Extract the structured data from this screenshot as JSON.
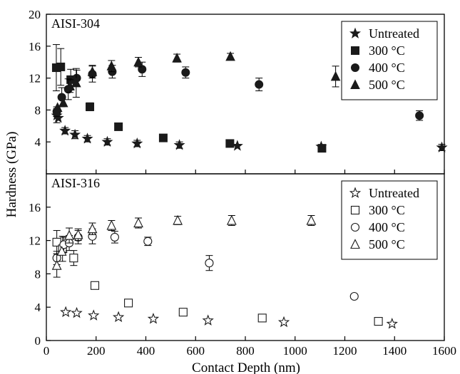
{
  "chart_data": {
    "type": "scatter",
    "xlabel": "Contact Depth (nm)",
    "ylabel": "Hardness (GPa)",
    "xlim": [
      0,
      1600
    ],
    "x_ticks": [
      "0",
      "200",
      "400",
      "600",
      "800",
      "1000",
      "1200",
      "1400",
      "1600"
    ],
    "panels": [
      {
        "title": "AISI-304",
        "ylim": [
          0,
          20
        ],
        "y_ticks": [
          "4",
          "8",
          "12",
          "16",
          "20"
        ],
        "legend_position": "top-right",
        "series": [
          {
            "name": "Untreated",
            "marker": "star",
            "filled": true,
            "points": [
              [
                42,
                7.3,
                0.9
              ],
              [
                48,
                7.0,
                0
              ],
              [
                75,
                5.4,
                0.4
              ],
              [
                115,
                4.9,
                0.5
              ],
              [
                165,
                4.4,
                0.4
              ],
              [
                245,
                4.0,
                0.4
              ],
              [
                365,
                3.8,
                0.4
              ],
              [
                535,
                3.6,
                0.4
              ],
              [
                768,
                3.5,
                0
              ],
              [
                1105,
                3.4,
                0
              ],
              [
                1590,
                3.3,
                0.4
              ]
            ]
          },
          {
            "name": "300 °C",
            "marker": "square",
            "filled": true,
            "points": [
              [
                40,
                13.3,
                2.9
              ],
              [
                58,
                13.4,
                2.3
              ],
              [
                98,
                11.8,
                1.3
              ],
              [
                175,
                8.4,
                0.5
              ],
              [
                290,
                5.9,
                0
              ],
              [
                470,
                4.5,
                0
              ],
              [
                738,
                3.8,
                0
              ],
              [
                1108,
                3.2,
                0
              ]
            ]
          },
          {
            "name": "400 °C",
            "marker": "circle",
            "filled": true,
            "points": [
              [
                42,
                7.8,
                0.6
              ],
              [
                62,
                9.6,
                1.2
              ],
              [
                88,
                10.6,
                1.3
              ],
              [
                122,
                12.0,
                1.0
              ],
              [
                185,
                12.5,
                1.0
              ],
              [
                265,
                12.8,
                0.8
              ],
              [
                385,
                13.1,
                0.9
              ],
              [
                560,
                12.7,
                0.7
              ],
              [
                855,
                11.2,
                0.8
              ],
              [
                1500,
                7.3,
                0.6
              ]
            ]
          },
          {
            "name": "500 °C",
            "marker": "triangle",
            "filled": true,
            "points": [
              [
                45,
                8.3,
                0
              ],
              [
                68,
                8.9,
                0
              ],
              [
                95,
                11.0,
                0.8
              ],
              [
                120,
                11.4,
                1.8
              ],
              [
                185,
                12.8,
                0.8
              ],
              [
                262,
                13.5,
                0.7
              ],
              [
                370,
                14.0,
                0.6
              ],
              [
                525,
                14.5,
                0.5
              ],
              [
                740,
                14.7,
                0.4
              ],
              [
                1163,
                12.2,
                1.3
              ]
            ]
          }
        ]
      },
      {
        "title": "AISI-316",
        "ylim": [
          0,
          20
        ],
        "y_ticks": [
          "0",
          "4",
          "8",
          "12",
          "16"
        ],
        "legend_position": "top-right",
        "series": [
          {
            "name": "Untreated",
            "marker": "star",
            "filled": false,
            "points": [
              [
                78,
                3.4,
                0
              ],
              [
                122,
                3.3,
                0
              ],
              [
                190,
                3.0,
                0
              ],
              [
                290,
                2.8,
                0
              ],
              [
                430,
                2.6,
                0
              ],
              [
                650,
                2.4,
                0
              ],
              [
                955,
                2.2,
                0
              ],
              [
                1390,
                2.0,
                0
              ]
            ]
          },
          {
            "name": "300 °C",
            "marker": "square",
            "filled": false,
            "points": [
              [
                42,
                11.8,
                1.4
              ],
              [
                65,
                11.0,
                1.5
              ],
              [
                110,
                9.9,
                0.9
              ],
              [
                195,
                6.6,
                0
              ],
              [
                330,
                4.5,
                0
              ],
              [
                550,
                3.4,
                0
              ],
              [
                868,
                2.7,
                0
              ],
              [
                1335,
                2.3,
                0
              ]
            ]
          },
          {
            "name": "400 °C",
            "marker": "circle",
            "filled": false,
            "points": [
              [
                42,
                9.9,
                0.8
              ],
              [
                70,
                11.5,
                0.9
              ],
              [
                92,
                11.7,
                0.9
              ],
              [
                128,
                12.4,
                0.8
              ],
              [
                185,
                12.5,
                0.9
              ],
              [
                275,
                12.4,
                0.7
              ],
              [
                408,
                11.9,
                0.5
              ],
              [
                655,
                9.3,
                0.9
              ],
              [
                1238,
                5.3,
                0
              ]
            ]
          },
          {
            "name": "500 °C",
            "marker": "triangle",
            "filled": false,
            "points": [
              [
                42,
                9.0,
                1.4
              ],
              [
                62,
                10.7,
                0
              ],
              [
                92,
                12.6,
                0.9
              ],
              [
                128,
                12.7,
                0.7
              ],
              [
                185,
                13.4,
                0.7
              ],
              [
                262,
                13.8,
                0.6
              ],
              [
                370,
                14.1,
                0.6
              ],
              [
                528,
                14.4,
                0.5
              ],
              [
                745,
                14.4,
                0.6
              ],
              [
                1065,
                14.4,
                0.6
              ]
            ]
          }
        ]
      }
    ]
  }
}
